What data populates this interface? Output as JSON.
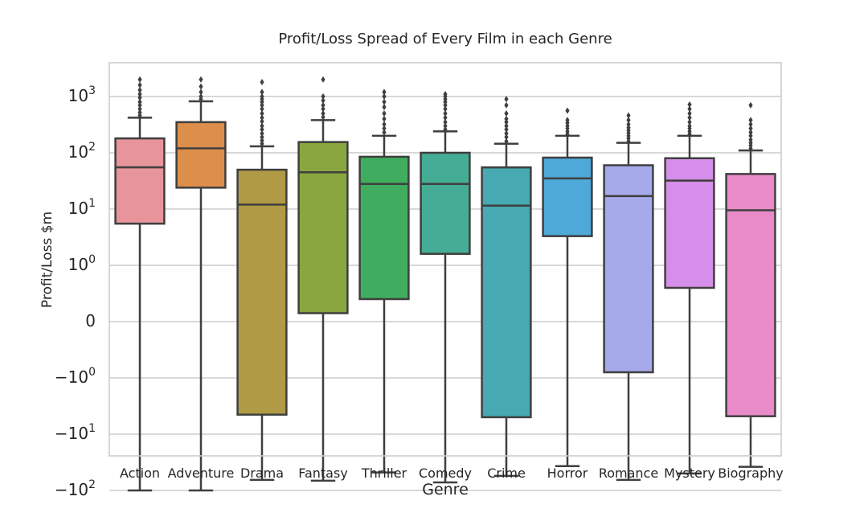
{
  "chart_data": {
    "type": "box",
    "title": "Profit/Loss Spread of Every Film in each Genre",
    "xlabel": "Genre",
    "ylabel": "Profit/Loss $m",
    "yscale": "symlog",
    "ylim": [
      -150,
      4000
    ],
    "grid": "horizontal",
    "yticks": [
      {
        "base": "−10",
        "exp": "2"
      },
      {
        "base": "−10",
        "exp": "1"
      },
      {
        "base": "−10",
        "exp": "0"
      },
      {
        "base": "0",
        "exp": ""
      },
      {
        "base": "10",
        "exp": "0"
      },
      {
        "base": "10",
        "exp": "1"
      },
      {
        "base": "10",
        "exp": "2"
      },
      {
        "base": "10",
        "exp": "3"
      }
    ],
    "categories": [
      "Action",
      "Adventure",
      "Drama",
      "Fantasy",
      "Thriller",
      "Comedy",
      "Crime",
      "Horror",
      "Romance",
      "Mystery",
      "Biography"
    ],
    "colors": [
      "#e8949b",
      "#dd8e4b",
      "#b09a45",
      "#8aa63e",
      "#40ac5f",
      "#45ad95",
      "#47a9b1",
      "#4ea8d8",
      "#a7aaea",
      "#d58ee9",
      "#e88bc8"
    ],
    "boxes": [
      {
        "whislo": -100,
        "q1": 5.5,
        "med": 55,
        "q3": 180,
        "whishi": 420,
        "fliers": [
          460,
          520,
          600,
          700,
          800,
          950,
          1100,
          1300,
          1600,
          2000
        ]
      },
      {
        "whislo": -100,
        "q1": 24,
        "med": 120,
        "q3": 350,
        "whishi": 820,
        "fliers": [
          900,
          1000,
          1200,
          1500,
          2000
        ]
      },
      {
        "whislo": -65,
        "q1": -4.5,
        "med": 12,
        "q3": 50,
        "whishi": 130,
        "fliers": [
          145,
          165,
          190,
          220,
          260,
          300,
          360,
          420,
          500,
          600,
          700,
          800,
          900,
          1000,
          1200,
          1800
        ]
      },
      {
        "whislo": -67,
        "q1": 0.15,
        "med": 45,
        "q3": 155,
        "whishi": 380,
        "fliers": [
          430,
          500,
          600,
          700,
          850,
          1000,
          2000
        ]
      },
      {
        "whislo": -48,
        "q1": 0.4,
        "med": 28,
        "q3": 85,
        "whishi": 200,
        "fliers": [
          230,
          270,
          320,
          400,
          500,
          650,
          800,
          1000,
          1200
        ]
      },
      {
        "whislo": -72,
        "q1": 1.6,
        "med": 28,
        "q3": 100,
        "whishi": 240,
        "fliers": [
          260,
          300,
          350,
          420,
          500,
          600,
          700,
          800,
          900,
          1000,
          1100
        ]
      },
      {
        "whislo": -55,
        "q1": -5,
        "med": 11.5,
        "q3": 55,
        "whishi": 145,
        "fliers": [
          160,
          190,
          220,
          260,
          300,
          350,
          400,
          500,
          700,
          900
        ]
      },
      {
        "whislo": -37,
        "q1": 3.3,
        "med": 35,
        "q3": 82,
        "whishi": 200,
        "fliers": [
          215,
          240,
          270,
          300,
          340,
          380,
          560
        ]
      },
      {
        "whislo": -65,
        "q1": -0.9,
        "med": 17,
        "q3": 60,
        "whishi": 150,
        "fliers": [
          160,
          180,
          200,
          225,
          250,
          280,
          320,
          380,
          460
        ]
      },
      {
        "whislo": -50,
        "q1": 0.6,
        "med": 32,
        "q3": 80,
        "whishi": 200,
        "fliers": [
          215,
          240,
          270,
          300,
          350,
          420,
          500,
          600,
          720
        ]
      },
      {
        "whislo": -38,
        "q1": -4.8,
        "med": 9.5,
        "q3": 42,
        "whishi": 110,
        "fliers": [
          120,
          135,
          150,
          170,
          200,
          230,
          270,
          320,
          380,
          700
        ]
      }
    ]
  }
}
